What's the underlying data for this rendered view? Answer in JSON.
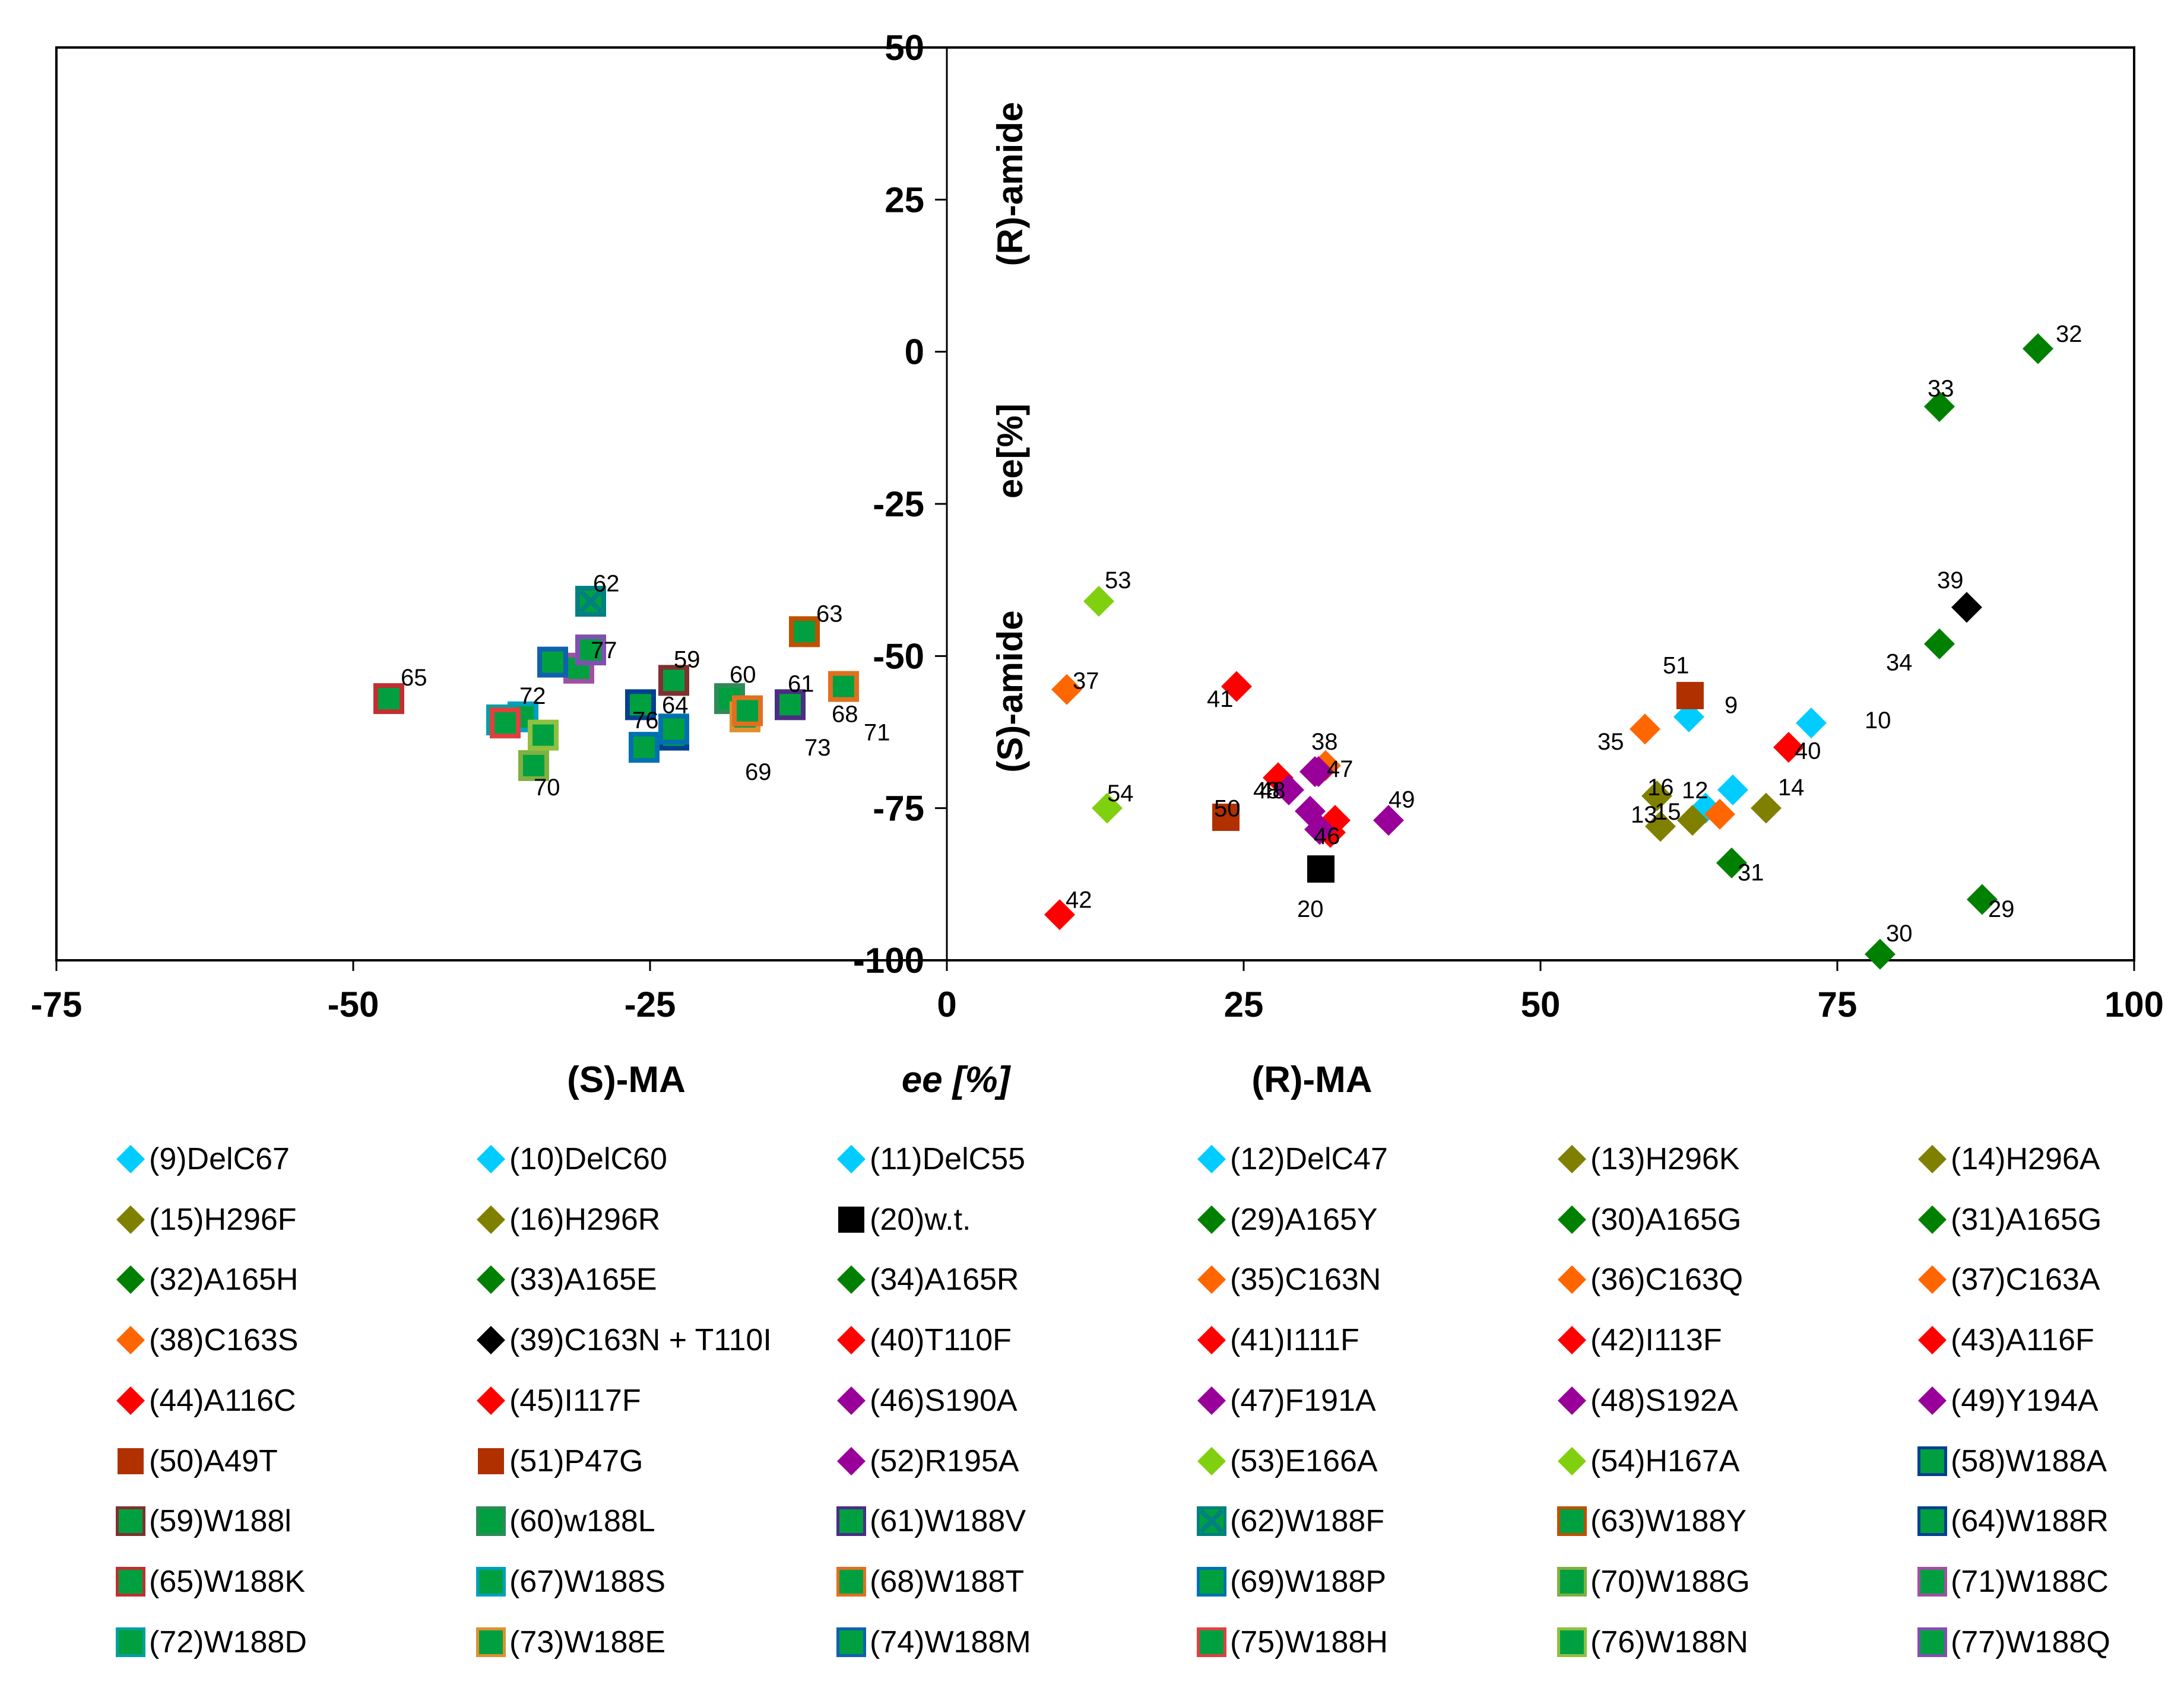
{
  "chart_data": {
    "type": "scatter",
    "xlabel": "ee [%]",
    "xlabel_left": "(S)-MA",
    "xlabel_right": "(R)-MA",
    "ylabel_top": "(R)-amide",
    "ylabel_mid": "ee[%]",
    "ylabel_bottom": "(S)-amide",
    "xlim": [
      -75,
      100
    ],
    "ylim": [
      -100,
      50
    ],
    "xticks": [
      -75,
      -50,
      -25,
      0,
      25,
      50,
      75,
      100
    ],
    "yticks": [
      50,
      25,
      0,
      -25,
      -50,
      -75,
      -100
    ],
    "series": [
      {
        "id": "9",
        "name": "(9)DelC67",
        "marker": "diamond",
        "fill": "#00CCFF",
        "stroke": "",
        "x": 62.5,
        "y": -60,
        "label": "9",
        "lx": 3.0,
        "ly": 2.0
      },
      {
        "id": "10",
        "name": "(10)DelC60",
        "marker": "diamond",
        "fill": "#00CCFF",
        "stroke": "",
        "x": 72.8,
        "y": -61,
        "label": "10",
        "lx": 4.5,
        "ly": 0.5
      },
      {
        "id": "11",
        "name": "(11)DelC55",
        "marker": "diamond",
        "fill": "#00CCFF",
        "stroke": "",
        "x": 66.2,
        "y": -72,
        "label": "",
        "lx": 0,
        "ly": 0
      },
      {
        "id": "12",
        "name": "(12)DelC47",
        "marker": "diamond",
        "fill": "#00CCFF",
        "stroke": "",
        "x": 63.9,
        "y": -75,
        "label": "12",
        "lx": -2.0,
        "ly": 3.0
      },
      {
        "id": "13",
        "name": "(13)H296K",
        "marker": "diamond",
        "fill": "#808000",
        "stroke": "",
        "x": 60.1,
        "y": -78,
        "label": "13",
        "lx": -2.5,
        "ly": 2.0
      },
      {
        "id": "14",
        "name": "(14)H296A",
        "marker": "diamond",
        "fill": "#808000",
        "stroke": "",
        "x": 69.0,
        "y": -75,
        "label": "14",
        "lx": 1.0,
        "ly": 3.5
      },
      {
        "id": "15",
        "name": "(15)H296F",
        "marker": "diamond",
        "fill": "#808000",
        "stroke": "",
        "x": 62.8,
        "y": -77,
        "label": "15",
        "lx": -3.2,
        "ly": 1.5
      },
      {
        "id": "16",
        "name": "(16)H296R",
        "marker": "diamond",
        "fill": "#808000",
        "stroke": "",
        "x": 59.8,
        "y": -73,
        "label": "16",
        "lx": -0.8,
        "ly": 1.5
      },
      {
        "id": "20",
        "name": "(20)w.t.",
        "marker": "square",
        "fill": "#000000",
        "stroke": "",
        "x": 31.5,
        "y": -85,
        "label": "20",
        "lx": -2.0,
        "ly": -6.5
      },
      {
        "id": "29",
        "name": "(29)A165Y",
        "marker": "diamond",
        "fill": "#008000",
        "stroke": "",
        "x": 87.2,
        "y": -90,
        "label": "29",
        "lx": 0.5,
        "ly": -1.5
      },
      {
        "id": "30",
        "name": "(30)A165G",
        "marker": "diamond",
        "fill": "#008000",
        "stroke": "",
        "x": 78.6,
        "y": -99,
        "label": "30",
        "lx": 0.5,
        "ly": 3.5
      },
      {
        "id": "31",
        "name": "(31)A165G",
        "marker": "diamond",
        "fill": "#008000",
        "stroke": "",
        "x": 66.1,
        "y": -84,
        "label": "31",
        "lx": 0.5,
        "ly": -1.5
      },
      {
        "id": "32",
        "name": "(32)A165H",
        "marker": "diamond",
        "fill": "#008000",
        "stroke": "",
        "x": 91.9,
        "y": 0.5,
        "label": "32",
        "lx": 1.5,
        "ly": 2.5
      },
      {
        "id": "33",
        "name": "(33)A165E",
        "marker": "diamond",
        "fill": "#008000",
        "stroke": "",
        "x": 83.6,
        "y": -9,
        "label": "33",
        "lx": -1.0,
        "ly": 3.0
      },
      {
        "id": "34",
        "name": "(34)A165R",
        "marker": "diamond",
        "fill": "#008000",
        "stroke": "",
        "x": 83.6,
        "y": -48,
        "label": "34",
        "lx": -4.5,
        "ly": -3.0
      },
      {
        "id": "35",
        "name": "(35)C163N",
        "marker": "diamond",
        "fill": "#FF6600",
        "stroke": "",
        "x": 58.8,
        "y": -62,
        "label": "35",
        "lx": -4.0,
        "ly": -2.0
      },
      {
        "id": "36",
        "name": "(36)C163Q",
        "marker": "diamond",
        "fill": "#FF6600",
        "stroke": "",
        "x": 65.1,
        "y": -76,
        "label": "",
        "lx": 0,
        "ly": 0
      },
      {
        "id": "37",
        "name": "(37)C163A",
        "marker": "diamond",
        "fill": "#FF6600",
        "stroke": "",
        "x": 10.1,
        "y": -55.5,
        "label": "37",
        "lx": 0.5,
        "ly": 1.5
      },
      {
        "id": "38",
        "name": "(38)C163S",
        "marker": "diamond",
        "fill": "#FF6600",
        "stroke": "",
        "x": 31.9,
        "y": -68,
        "label": "38",
        "lx": -1.2,
        "ly": 4.0
      },
      {
        "id": "39",
        "name": "(39)C163N + T110I",
        "marker": "diamond",
        "fill": "#000000",
        "stroke": "",
        "x": 85.9,
        "y": -42,
        "label": "39",
        "lx": -2.5,
        "ly": 4.5
      },
      {
        "id": "40",
        "name": "(40)T110F",
        "marker": "diamond",
        "fill": "#FF0000",
        "stroke": "",
        "x": 70.9,
        "y": -65,
        "label": "40",
        "lx": 0.5,
        "ly": -0.5
      },
      {
        "id": "41",
        "name": "(41)I111F",
        "marker": "diamond",
        "fill": "#FF0000",
        "stroke": "",
        "x": 24.4,
        "y": -55,
        "label": "41",
        "lx": -2.5,
        "ly": -2.0
      },
      {
        "id": "42",
        "name": "(42)I113F",
        "marker": "diamond",
        "fill": "#FF0000",
        "stroke": "",
        "x": 9.5,
        "y": -92.5,
        "label": "42",
        "lx": 0.5,
        "ly": 2.5
      },
      {
        "id": "43",
        "name": "(43)A116F",
        "marker": "diamond",
        "fill": "#FF0000",
        "stroke": "",
        "x": 27.9,
        "y": -70,
        "label": "",
        "lx": 0,
        "ly": 0
      },
      {
        "id": "44",
        "name": "(44)A116C",
        "marker": "diamond",
        "fill": "#FF0000",
        "stroke": "",
        "x": 32.7,
        "y": -77,
        "label": "",
        "lx": 0,
        "ly": 0
      },
      {
        "id": "45",
        "name": "(45)I117F",
        "marker": "diamond",
        "fill": "#FF0000",
        "stroke": "",
        "x": 32.3,
        "y": -79,
        "label": "",
        "lx": 0,
        "ly": 0
      },
      {
        "id": "46",
        "name": "(46)S190A",
        "marker": "diamond",
        "fill": "#990099",
        "stroke": "",
        "x": 31.4,
        "y": -78.5,
        "label": "46",
        "lx": -0.5,
        "ly": -1.0
      },
      {
        "id": "47",
        "name": "(47)F191A",
        "marker": "diamond",
        "fill": "#990099",
        "stroke": "",
        "x": 31.0,
        "y": -69,
        "label": "47",
        "lx": 1.0,
        "ly": 0.5
      },
      {
        "id": "48",
        "name": "(48)S192A",
        "marker": "diamond",
        "fill": "#990099",
        "stroke": "",
        "x": 28.8,
        "y": -72,
        "label": "48",
        "lx": -3.0,
        "ly": 0.0
      },
      {
        "id": "48b",
        "name": "",
        "marker": "diamond",
        "fill": "#990099",
        "stroke": "",
        "x": 30.6,
        "y": -75.5,
        "label": "48",
        "lx": -4.3,
        "ly": 3.5
      },
      {
        "id": "49",
        "name": "(49)Y194A",
        "marker": "diamond",
        "fill": "#990099",
        "stroke": "",
        "x": 37.2,
        "y": -77,
        "label": "49",
        "lx": 0.0,
        "ly": 3.5
      },
      {
        "id": "50",
        "name": "(50)A49T",
        "marker": "square",
        "fill": "#B03000",
        "stroke": "",
        "x": 23.5,
        "y": -76.5,
        "label": "50",
        "lx": -1.0,
        "ly": 1.5
      },
      {
        "id": "51",
        "name": "(51)P47G",
        "marker": "square",
        "fill": "#B03000",
        "stroke": "",
        "x": 62.6,
        "y": -56.5,
        "label": "51",
        "lx": -2.3,
        "ly": 5.0
      },
      {
        "id": "52",
        "name": "(52)R195A",
        "marker": "diamond",
        "fill": "#990099",
        "stroke": "",
        "x": 31.3,
        "y": -69,
        "label": "",
        "lx": 0,
        "ly": 0
      },
      {
        "id": "53",
        "name": "(53)E166A",
        "marker": "diamond",
        "fill": "#80D010",
        "stroke": "",
        "x": 12.8,
        "y": -41,
        "label": "53",
        "lx": 0.5,
        "ly": 3.5
      },
      {
        "id": "54",
        "name": "(54)H167A",
        "marker": "diamond",
        "fill": "#80D010",
        "stroke": "",
        "x": 13.5,
        "y": -75,
        "label": "54",
        "lx": 0.0,
        "ly": 2.5
      },
      {
        "id": "58",
        "name": "(58)W188A",
        "marker": "square",
        "fill": "#00A040",
        "stroke": "#004090",
        "x": -25.8,
        "y": -58,
        "label": "",
        "lx": 0,
        "ly": 0
      },
      {
        "id": "59",
        "name": "(59)W188l",
        "marker": "square",
        "fill": "#00A040",
        "stroke": "#803030",
        "x": -23.0,
        "y": -54,
        "label": "59",
        "lx": 0.0,
        "ly": 3.5
      },
      {
        "id": "60",
        "name": "(60)w188L",
        "marker": "square",
        "fill": "#00A040",
        "stroke": "#2E8B57",
        "x": -18.3,
        "y": -57,
        "label": "60",
        "lx": 0.0,
        "ly": 4.0
      },
      {
        "id": "61",
        "name": "(61)W188V",
        "marker": "square",
        "fill": "#00A040",
        "stroke": "#4B2E83",
        "x": -13.2,
        "y": -58,
        "label": "61",
        "lx": -0.2,
        "ly": 3.5
      },
      {
        "id": "62",
        "name": "(62)W188F",
        "marker": "squarex",
        "fill": "#00A040",
        "stroke": "#008080",
        "x": -30.0,
        "y": -41,
        "label": "62",
        "lx": 0.2,
        "ly": 3.0
      },
      {
        "id": "63",
        "name": "(63)W188Y",
        "marker": "square",
        "fill": "#00A040",
        "stroke": "#C05000",
        "x": -12.0,
        "y": -46,
        "label": "63",
        "lx": 1.0,
        "ly": 3.0
      },
      {
        "id": "64",
        "name": "(64)W188R",
        "marker": "square",
        "fill": "#00A040",
        "stroke": "#004090",
        "x": -23.0,
        "y": -63,
        "label": "64",
        "lx": -1.0,
        "ly": 5.0
      },
      {
        "id": "65",
        "name": "(65)W188K",
        "marker": "square",
        "fill": "#00A040",
        "stroke": "#C03030",
        "x": -47.0,
        "y": -57,
        "label": "65",
        "lx": 1.0,
        "ly": 3.5
      },
      {
        "id": "67",
        "name": "(67)W188S",
        "marker": "square",
        "fill": "#00A040",
        "stroke": "#00A0C0",
        "x": -35.7,
        "y": -60,
        "label": "",
        "lx": 0,
        "ly": 0
      },
      {
        "id": "68",
        "name": "(68)W188T",
        "marker": "square",
        "fill": "#00A040",
        "stroke": "#E07020",
        "x": -8.7,
        "y": -55,
        "label": "68",
        "lx": -1.0,
        "ly": -4.5
      },
      {
        "id": "69",
        "name": "(69)W188P",
        "marker": "square",
        "fill": "#00A040",
        "stroke": "#0070B0",
        "x": -25.5,
        "y": -65,
        "label": "69",
        "lx": 8.5,
        "ly": -4.0
      },
      {
        "id": "70",
        "name": "(70)W188G",
        "marker": "square",
        "fill": "#00A040",
        "stroke": "#80B040",
        "x": -34.8,
        "y": -68,
        "label": "70",
        "lx": 0.0,
        "ly": -3.5
      },
      {
        "id": "71",
        "name": "(71)W188C",
        "marker": "square",
        "fill": "#00A040",
        "stroke": "#A050A0",
        "x": -31.0,
        "y": -52,
        "label": "71",
        "lx": 24.0,
        "ly": -10.5
      },
      {
        "id": "72",
        "name": "(72)W188D",
        "marker": "square",
        "fill": "#00A040",
        "stroke": "#00A0A0",
        "x": -37.5,
        "y": -60.5,
        "label": "72",
        "lx": 1.5,
        "ly": 4.0
      },
      {
        "id": "73",
        "name": "(73)W188E",
        "marker": "square",
        "fill": "#00A040",
        "stroke": "#E09030",
        "x": -17.0,
        "y": -60,
        "label": "73",
        "lx": 5.0,
        "ly": -5.0
      },
      {
        "id": "74",
        "name": "(74)W188M",
        "marker": "square",
        "fill": "#00A040",
        "stroke": "#1060B0",
        "x": -33.2,
        "y": -51,
        "label": "",
        "lx": 0,
        "ly": 0
      },
      {
        "id": "75",
        "name": "(75)W188H",
        "marker": "square",
        "fill": "#00A040",
        "stroke": "#E04040",
        "x": -37.2,
        "y": -61,
        "label": "",
        "lx": 0,
        "ly": 0
      },
      {
        "id": "76",
        "name": "(76)W188N",
        "marker": "square",
        "fill": "#00A040",
        "stroke": "#90C040",
        "x": -34.0,
        "y": -63,
        "label": "76",
        "lx": 7.5,
        "ly": 2.5
      },
      {
        "id": "77",
        "name": "(77)W188Q",
        "marker": "square",
        "fill": "#00A040",
        "stroke": "#8050B0",
        "x": -30.0,
        "y": -49,
        "label": "77",
        "lx": 0.0,
        "ly": 0.0
      },
      {
        "id": "ex1",
        "name": "",
        "marker": "square",
        "fill": "#00A040",
        "stroke": "#0070B0",
        "x": -23.0,
        "y": -62,
        "label": "",
        "lx": 0,
        "ly": 0
      },
      {
        "id": "ex2",
        "name": "",
        "marker": "square",
        "fill": "#00A040",
        "stroke": "#E07020",
        "x": -16.8,
        "y": -59,
        "label": "",
        "lx": 0,
        "ly": 0
      }
    ]
  }
}
